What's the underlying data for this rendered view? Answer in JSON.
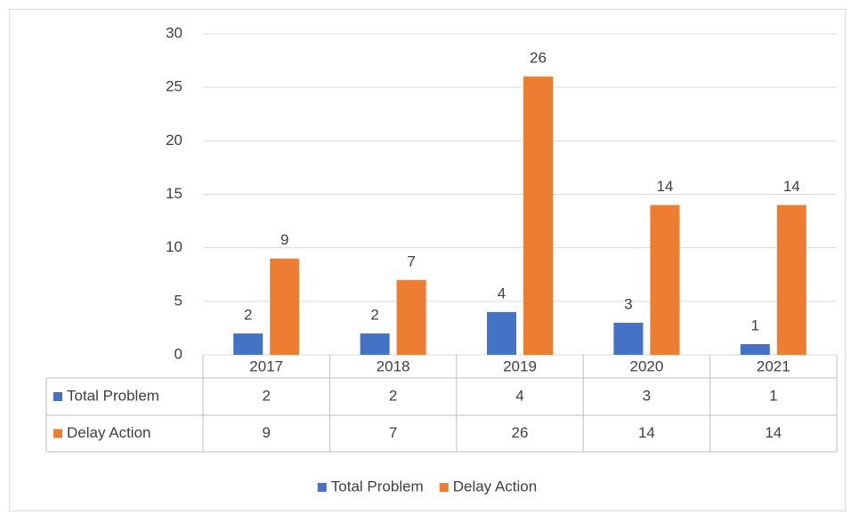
{
  "chart_data": {
    "type": "bar",
    "categories": [
      "2017",
      "2018",
      "2019",
      "2020",
      "2021"
    ],
    "series": [
      {
        "name": "Total Problem",
        "color": "#4472c4",
        "values": [
          2,
          2,
          4,
          3,
          1
        ]
      },
      {
        "name": "Delay Action",
        "color": "#ed7d31",
        "values": [
          9,
          7,
          26,
          14,
          14
        ]
      }
    ],
    "ylim": [
      0,
      30
    ],
    "yticks": [
      0,
      5,
      10,
      15,
      20,
      25,
      30
    ],
    "grid": true,
    "data_table": true,
    "legend": "bottom"
  }
}
